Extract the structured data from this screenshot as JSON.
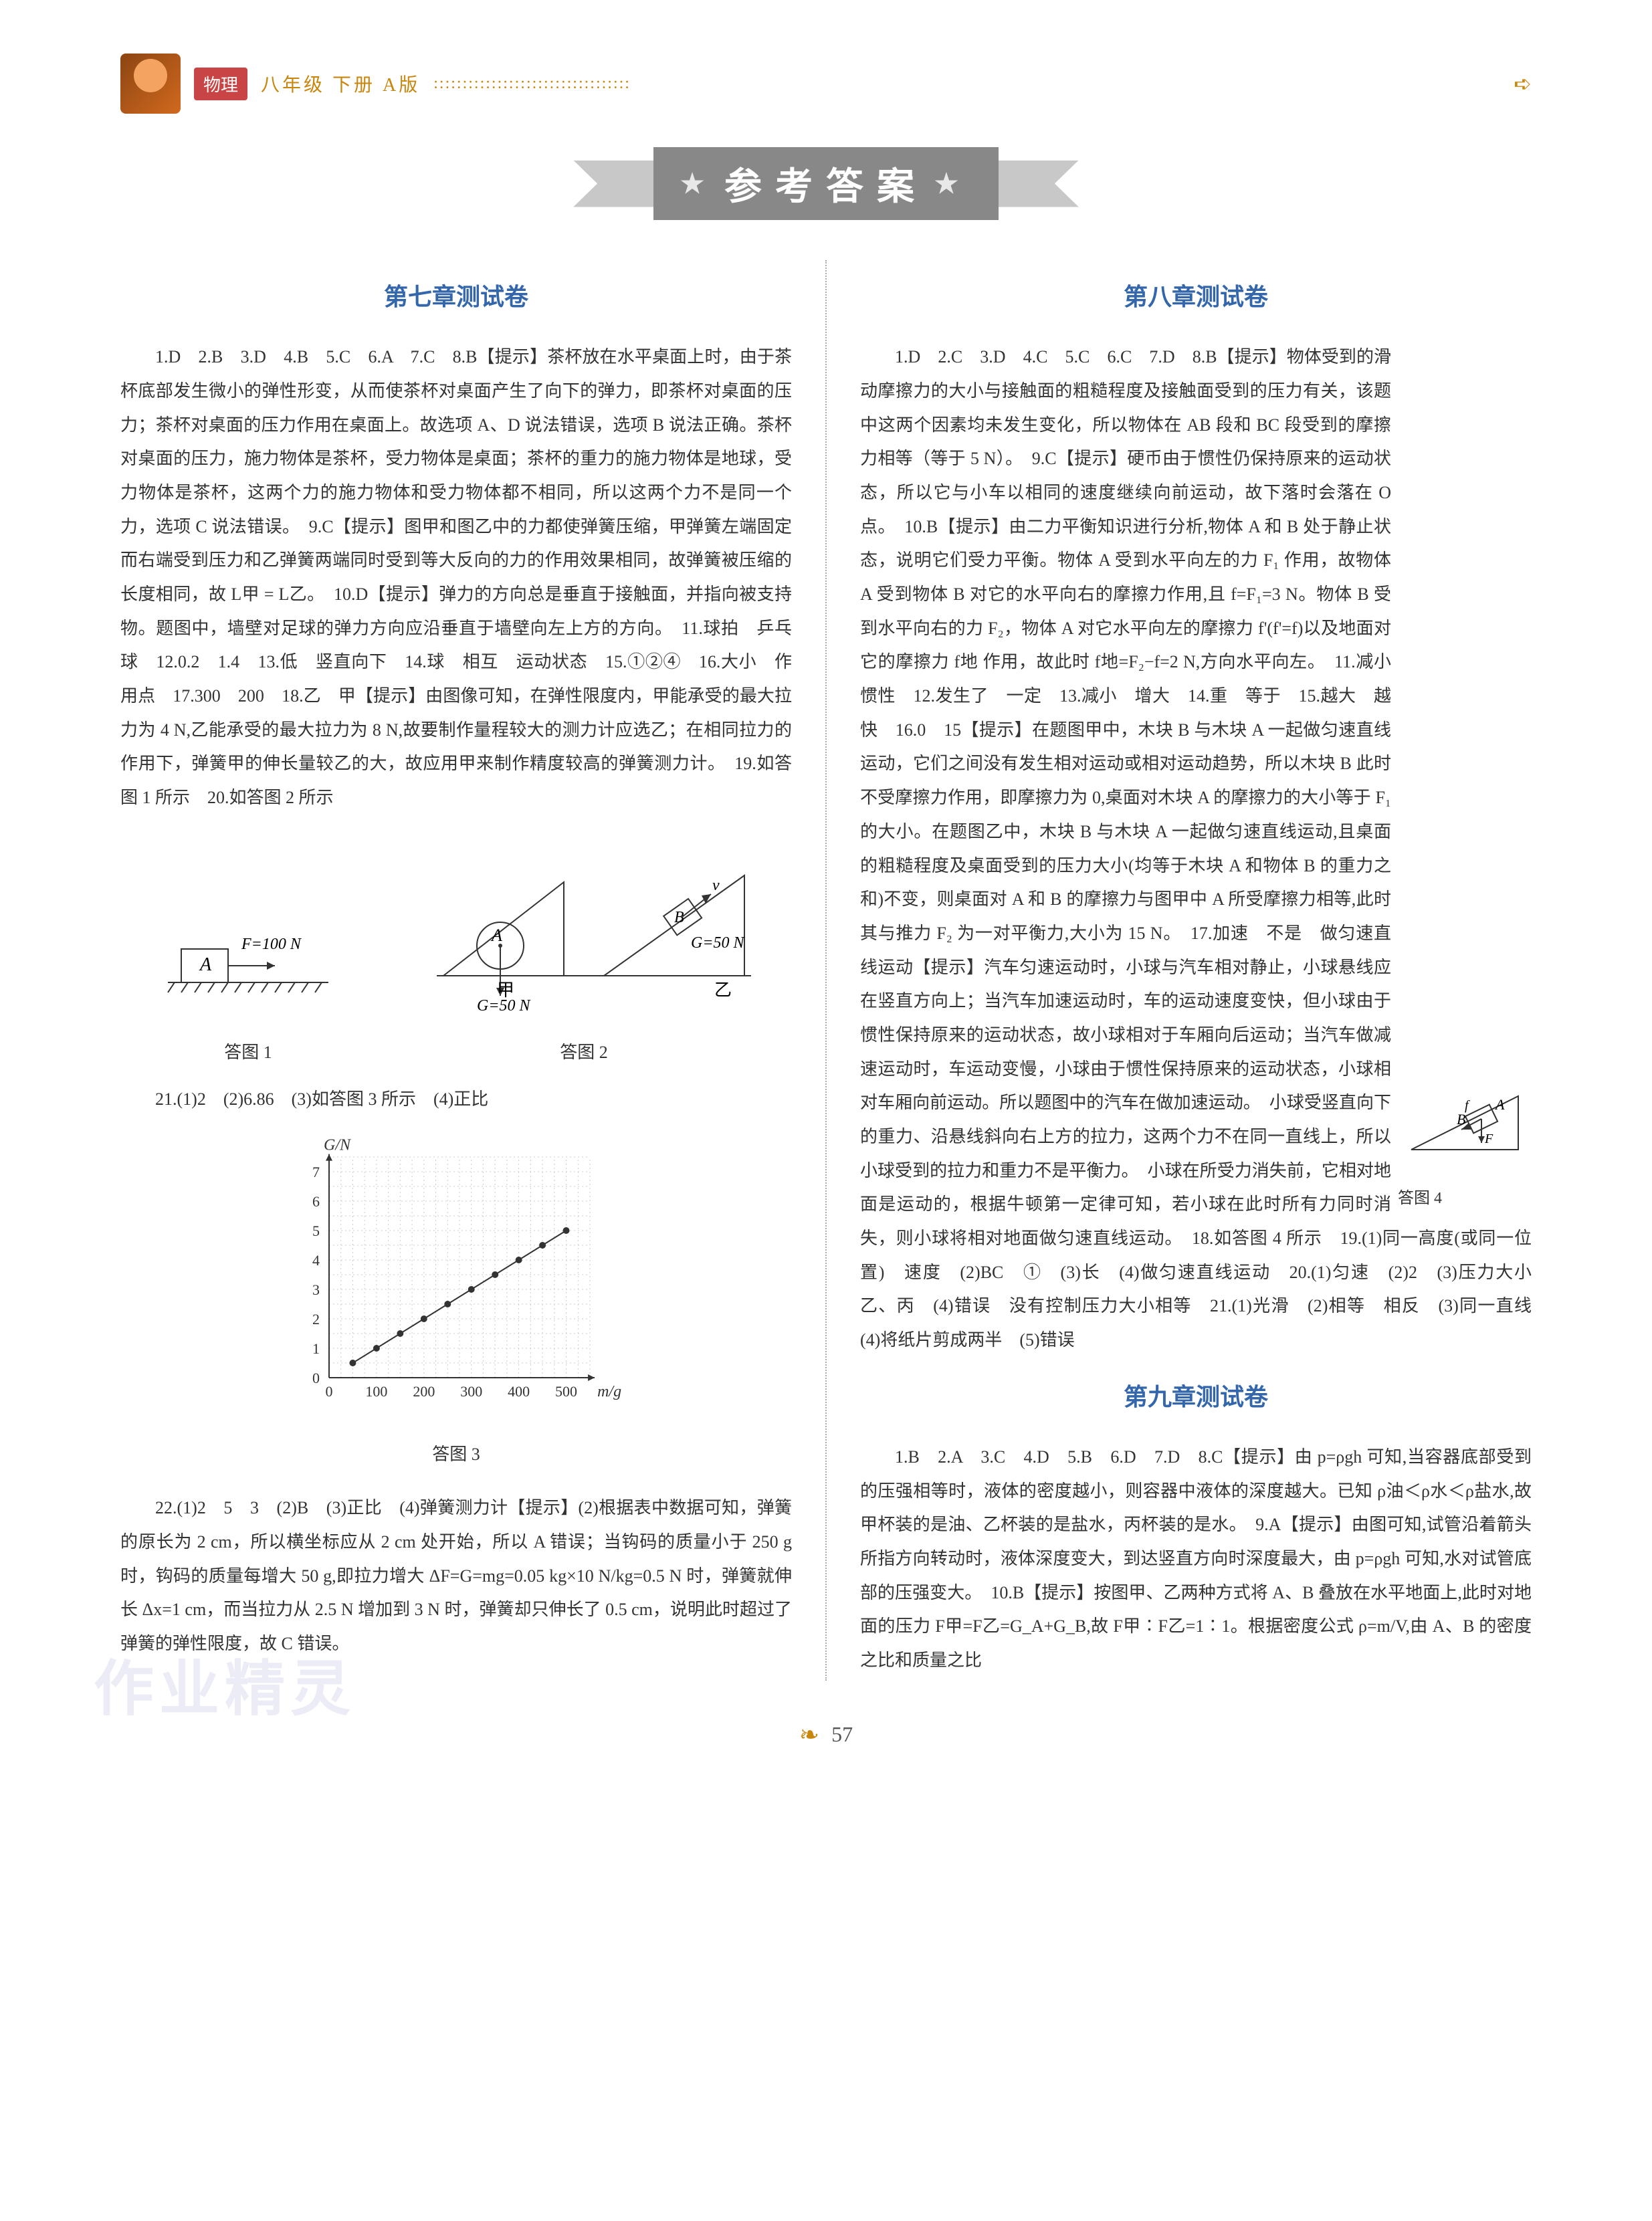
{
  "header": {
    "subject": "物理",
    "grade": "八年级  下册  A版",
    "dots": "::::::::::::::::::::::::::::::::::",
    "arrow": "➪"
  },
  "banner": {
    "star": "★",
    "title": "参考答案"
  },
  "chapter7": {
    "title": "第七章测试卷",
    "p1": "1.D　2.B　3.D　4.B　5.C　6.A　7.C　8.B【提示】茶杯放在水平桌面上时，由于茶杯底部发生微小的弹性形变，从而使茶杯对桌面产生了向下的弹力，即茶杯对桌面的压力；茶杯对桌面的压力作用在桌面上。故选项 A、D 说法错误，选项 B 说法正确。茶杯对桌面的压力，施力物体是茶杯，受力物体是桌面；茶杯的重力的施力物体是地球，受力物体是茶杯，这两个力的施力物体和受力物体都不相同，所以这两个力不是同一个力，选项 C 说法错误。　9.C【提示】图甲和图乙中的力都使弹簧压缩，甲弹簧左端固定而右端受到压力和乙弹簧两端同时受到等大反向的力的作用效果相同，故弹簧被压缩的长度相同，故 L甲 = L乙。　10.D【提示】弹力的方向总是垂直于接触面，并指向被支持物。题图中，墙壁对足球的弹力方向应沿垂直于墙壁向左上方的方向。　11.球拍　乒乓球　12.0.2　1.4　13.低　竖直向下　14.球　相互　运动状态　15.①②④　16.大小　作用点　17.300　200　18.乙　甲【提示】由图像可知，在弹性限度内，甲能承受的最大拉力为 4 N,乙能承受的最大拉力为 8 N,故要制作量程较大的测力计应选乙；在相同拉力的作用下，弹簧甲的伸长量较乙的大，故应用甲来制作精度较高的弹簧测力计。　19.如答图 1 所示　20.如答图 2 所示",
    "fig1_caption": "答图 1",
    "fig2_caption": "答图 2",
    "fig1": {
      "A": "A",
      "F": "F=100 N"
    },
    "fig2": {
      "A": "A",
      "B": "B",
      "G50": "G=50 N",
      "G50b": "G=50 N",
      "v": "v",
      "jia": "甲",
      "yi": "乙"
    },
    "p2": "21.(1)2　(2)6.86　(3)如答图 3 所示　(4)正比",
    "chart": {
      "type": "scatter-line",
      "xlabel": "m/g",
      "ylabel": "G/N",
      "x_ticks": [
        0,
        100,
        200,
        300,
        400,
        500
      ],
      "y_ticks": [
        0,
        1,
        2,
        3,
        4,
        5,
        6,
        7
      ],
      "points_x": [
        50,
        100,
        150,
        200,
        250,
        300,
        350,
        400,
        450,
        500
      ],
      "points_y": [
        0.5,
        1.0,
        1.5,
        2.0,
        2.5,
        3.0,
        3.5,
        4.0,
        4.5,
        5.0
      ],
      "point_color": "#333333",
      "line_color": "#333333",
      "grid_color": "#cccccc",
      "bg": "#ffffff",
      "caption": "答图 3"
    },
    "p3": "22.(1)2　5　3　(2)B　(3)正比　(4)弹簧测力计【提示】(2)根据表中数据可知，弹簧的原长为 2 cm，所以横坐标应从 2 cm 处开始，所以 A 错误；当钩码的质量小于 250 g 时，钩码的质量每增大 50 g,即拉力增大 ΔF=G=mg=0.05 kg×10 N/kg=0.5 N 时，弹簧就伸长 Δx=1 cm，而当拉力从 2.5 N 增加到 3 N 时，弹簧却只伸长了 0.5 cm，说明此时超过了弹簧的弹性限度，故 C 错误。"
  },
  "chapter8": {
    "title": "第八章测试卷",
    "p1": "1.D　2.C　3.D　4.C　5.C　6.C　7.D　8.B【提示】物体受到的滑动摩擦力的大小与接触面的粗糙程度及接触面受到的压力有关，该题中这两个因素均未发生变化，所以物体在 AB 段和 BC 段受到的摩擦力相等（等于 5 N）。　9.C【提示】硬币由于惯性仍保持原来的运动状态，所以它与小车以相同的速度继续向前运动，故下落时会落在 O 点。　10.B【提示】由二力平衡知识进行分析,物体 A 和 B 处于静止状态，说明它们受力平衡。物体 A 受到水平向左的力 F₁ 作用，故物体 A 受到物体 B 对它的水平向右的摩擦力作用,且 f=F₁=3 N。物体 B 受到水平向右的力 F₂，物体 A 对它水平向左的摩擦力 f'(f'=f)以及地面对它的摩擦力 f地 作用，故此时 f地=F₂−f=2 N,方向水平向左。　11.减小　惯性　12.发生了　一定　13.减小　增大　14.重　等于　15.越大　越快　16.0　15【提示】在题图甲中，木块 B 与木块 A 一起做匀速直线运动，它们之间没有发生相对运动或相对运动趋势，所以木块 B 此时不受摩擦力作用，即摩擦力为 0,桌面对木块 A 的摩擦力的大小等于 F₁ 的大小。在题图乙中，木块 B 与木块 A 一起做匀速直线运动,且桌面的粗糙程度及桌面受到的压力大小(均等于木块 A 和物体 B 的重力之和)不变，则桌面对 A 和 B 的摩擦力与图甲中 A 所受摩擦力相等,此时其与推力 F₂ 为一对平衡力,大小为 15 N。　17.加速　不是　做匀速直线运动【提示】汽车匀速运动时，小球与汽车相对静止，小球悬线应在竖直方向上；当汽车加速运动时，车的运动速度变快，但小球由于惯性保持原来的运动状态，故小球相对于车厢向后运动；当汽车做减速运动时，车运动变慢，小球由于惯性保持原来的运动状态，小球相对车厢向前运动。所以题图中的汽车在做加速运动。　小球受竖直向下的重力、沿悬线斜向右上方的拉力，这两个力不在同一直线上，所以小球受到的拉力和重力不是平衡力。　小球在所受力消失前，它相对地面是运动的，根据牛顿第一定律可知，若小球在此时所有力同时消失，则小球将相对地面做匀速直线运动。　18.如答图 4 所示　19.(1)同一高度(或同一位置)　速度　(2)BC　①　(3)长　(4)做匀速直线运动　20.(1)匀速　(2)2　(3)压力大小　乙、丙　(4)错误　没有控制压力大小相等　21.(1)光滑　(2)相等　相反　(3)同一直线　(4)将纸片剪成两半　(5)错误",
    "fig4": {
      "A": "A",
      "B": "B",
      "f": "f",
      "F": "F",
      "caption": "答图 4"
    }
  },
  "chapter9": {
    "title": "第九章测试卷",
    "p1": "1.B　2.A　3.C　4.D　5.B　6.D　7.D　8.C【提示】由 p=ρgh 可知,当容器底部受到的压强相等时，液体的密度越小，则容器中液体的深度越大。已知 ρ油＜ρ水＜ρ盐水,故甲杯装的是油、乙杯装的是盐水，丙杯装的是水。　9.A【提示】由图可知,试管沿着箭头所指方向转动时，液体深度变大，到达竖直方向时深度最大，由 p=ρgh 可知,水对试管底部的压强变大。　10.B【提示】按图甲、乙两种方式将 A、B 叠放在水平地面上,此时对地面的压力 F甲=F乙=G_A+G_B,故 F甲∶F乙=1∶1。根据密度公式 ρ=m/V,由 A、B 的密度之比和质量之比"
  },
  "watermark": "作业精灵",
  "footer": {
    "deco": "❧",
    "page": "57"
  }
}
